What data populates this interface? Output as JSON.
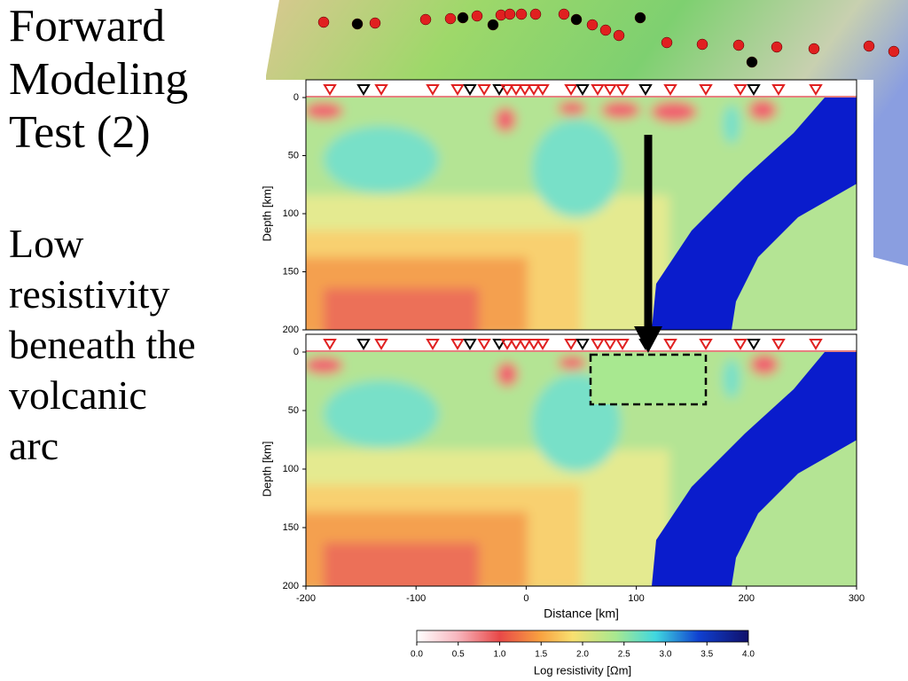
{
  "slide": {
    "title_lines": [
      "Forward",
      "Modeling",
      "Test (2)"
    ],
    "body_lines": [
      "Low",
      "resistivity",
      "beneath the",
      "volcanic",
      "arc"
    ]
  },
  "figure": {
    "xlabel": "Distance [km]",
    "ylabel": "Depth [km]",
    "xlim": [
      -200,
      300
    ],
    "xticks": [
      -200,
      -100,
      0,
      100,
      200,
      300
    ],
    "ylim": [
      0,
      200
    ],
    "yticks": [
      0,
      50,
      100,
      150,
      200
    ],
    "colorbar": {
      "label": "Log resistivity [Ωm]",
      "lim": [
        0,
        4
      ],
      "ticks": [
        {
          "value": 0,
          "label": "0.0"
        },
        0.5,
        {
          "value": 1,
          "label": "1.0"
        },
        1.5,
        {
          "value": 2,
          "label": "2.0"
        },
        2.5,
        {
          "value": 3,
          "label": "3.0"
        },
        3.5,
        {
          "value": 4,
          "label": "4.0"
        }
      ]
    }
  }
}
